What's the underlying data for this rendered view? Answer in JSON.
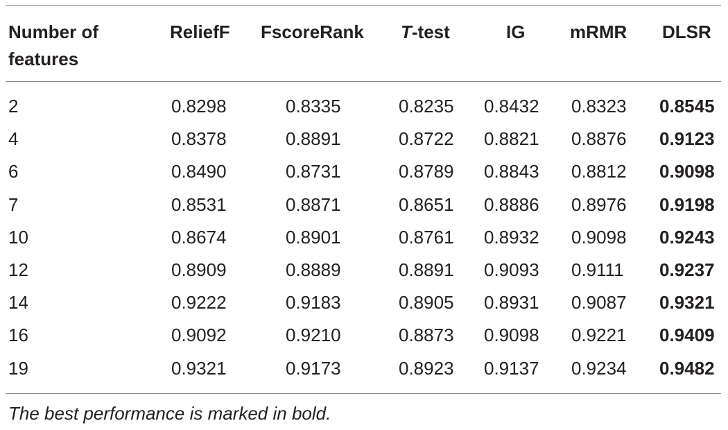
{
  "table": {
    "headers": {
      "col0_line1": "Number of",
      "col0_line2": "features",
      "col1": "ReliefF",
      "col2": "FscoreRank",
      "col3_italic": "T",
      "col3_rest": "-test",
      "col4": "IG",
      "col5": "mRMR",
      "col6": "DLSR"
    },
    "rows": [
      [
        "2",
        "0.8298",
        "0.8335",
        "0.8235",
        "0.8432",
        "0.8323",
        "0.8545"
      ],
      [
        "4",
        "0.8378",
        "0.8891",
        "0.8722",
        "0.8821",
        "0.8876",
        "0.9123"
      ],
      [
        "6",
        "0.8490",
        "0.8731",
        "0.8789",
        "0.8843",
        "0.8812",
        "0.9098"
      ],
      [
        "7",
        "0.8531",
        "0.8871",
        "0.8651",
        "0.8886",
        "0.8976",
        "0.9198"
      ],
      [
        "10",
        "0.8674",
        "0.8901",
        "0.8761",
        "0.8932",
        "0.9098",
        "0.9243"
      ],
      [
        "12",
        "0.8909",
        "0.8889",
        "0.8891",
        "0.9093",
        "0.9111",
        "0.9237"
      ],
      [
        "14",
        "0.9222",
        "0.9183",
        "0.8905",
        "0.8931",
        "0.9087",
        "0.9321"
      ],
      [
        "16",
        "0.9092",
        "0.9210",
        "0.8873",
        "0.9098",
        "0.9221",
        "0.9409"
      ],
      [
        "19",
        "0.9321",
        "0.9173",
        "0.8923",
        "0.9137",
        "0.9234",
        "0.9482"
      ]
    ],
    "footnote": "The best performance is marked in bold."
  }
}
